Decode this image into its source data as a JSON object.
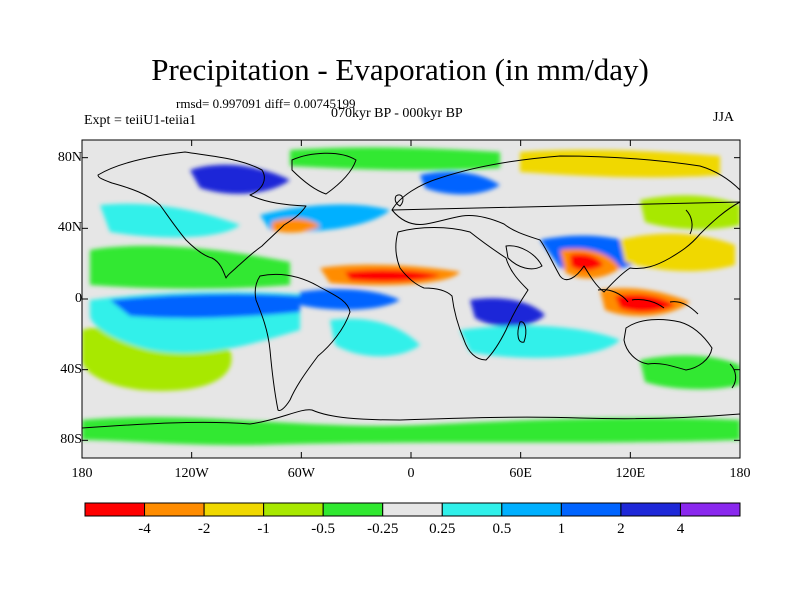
{
  "header": {
    "title": "Precipitation - Evaporation (in mm/day)",
    "stats": "rmsd= 0.997091 diff= 0.00745199",
    "subtitle": "070kyr BP - 000kyr BP",
    "experiment": "Expt = teiiU1-teiia1",
    "season": "JJA"
  },
  "axes": {
    "y_ticks": [
      {
        "label": "80N",
        "lat": 80
      },
      {
        "label": "40N",
        "lat": 40
      },
      {
        "label": "0",
        "lat": 0
      },
      {
        "label": "40S",
        "lat": -40
      },
      {
        "label": "80S",
        "lat": -80
      }
    ],
    "x_ticks": [
      {
        "label": "180",
        "lon": -180
      },
      {
        "label": "120W",
        "lon": -120
      },
      {
        "label": "60W",
        "lon": -60
      },
      {
        "label": "0",
        "lon": 0
      },
      {
        "label": "60E",
        "lon": 60
      },
      {
        "label": "120E",
        "lon": 120
      },
      {
        "label": "180",
        "lon": 180
      }
    ],
    "lon_range": [
      -180,
      180
    ],
    "lat_range": [
      -90,
      90
    ]
  },
  "colorbar": {
    "colors": [
      "#ff0000",
      "#ff8c00",
      "#f0d800",
      "#a8e800",
      "#30e830",
      "#e6e6e6",
      "#30f0ea",
      "#00b0ff",
      "#0064ff",
      "#1e28d8",
      "#8a28ee"
    ],
    "labels": [
      "-4",
      "-2",
      "-1",
      "-0.5",
      "-0.25",
      "0.25",
      "0.5",
      "1",
      "2",
      "4"
    ]
  },
  "palette": {
    "background_field": "#e6e6e6",
    "coast": "#000000"
  }
}
